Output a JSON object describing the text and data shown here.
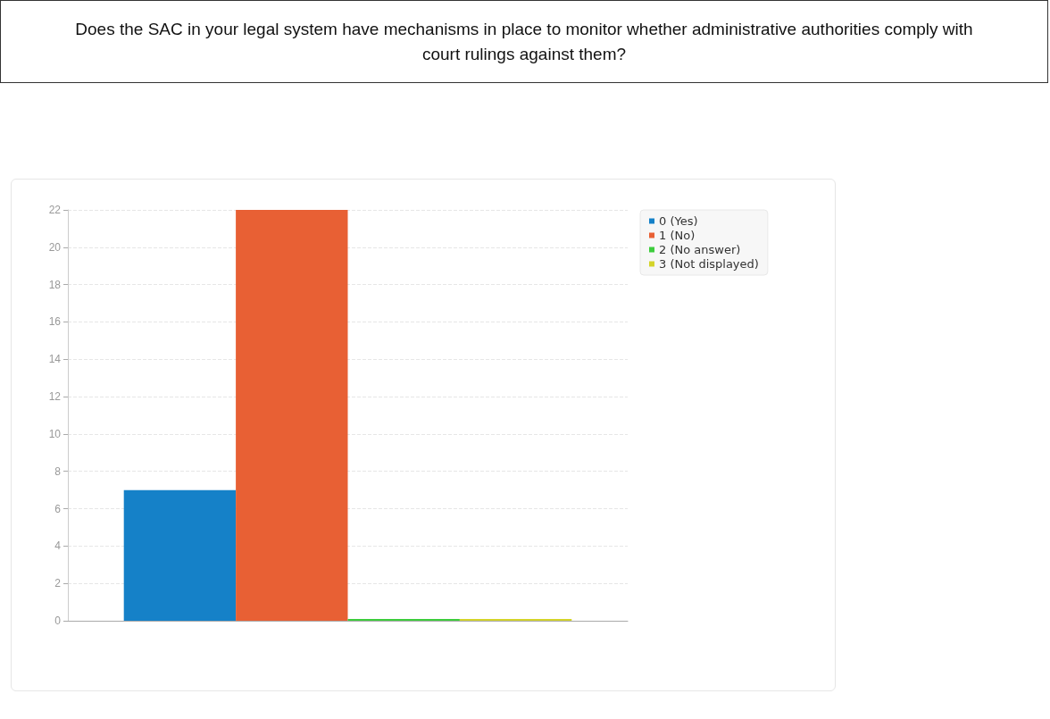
{
  "chart_data": {
    "type": "bar",
    "title": "Does the SAC in your legal system have mechanisms in place to monitor whether administrative authorities comply with court rulings against them?",
    "categories": [
      null
    ],
    "series": [
      {
        "name": "0 (Yes)",
        "color": "#1581c8",
        "values": [
          7
        ]
      },
      {
        "name": "1 (No)",
        "color": "#e86034",
        "values": [
          22
        ]
      },
      {
        "name": "2 (No answer)",
        "color": "#3dcc3d",
        "values": [
          0
        ]
      },
      {
        "name": "3 (Not displayed)",
        "color": "#d4d42a",
        "values": [
          0
        ]
      }
    ],
    "ylim": [
      0,
      22
    ],
    "yticks": [
      0,
      2,
      4,
      6,
      8,
      10,
      12,
      14,
      16,
      18,
      20,
      22
    ],
    "grid": "y",
    "legend": "top right"
  }
}
